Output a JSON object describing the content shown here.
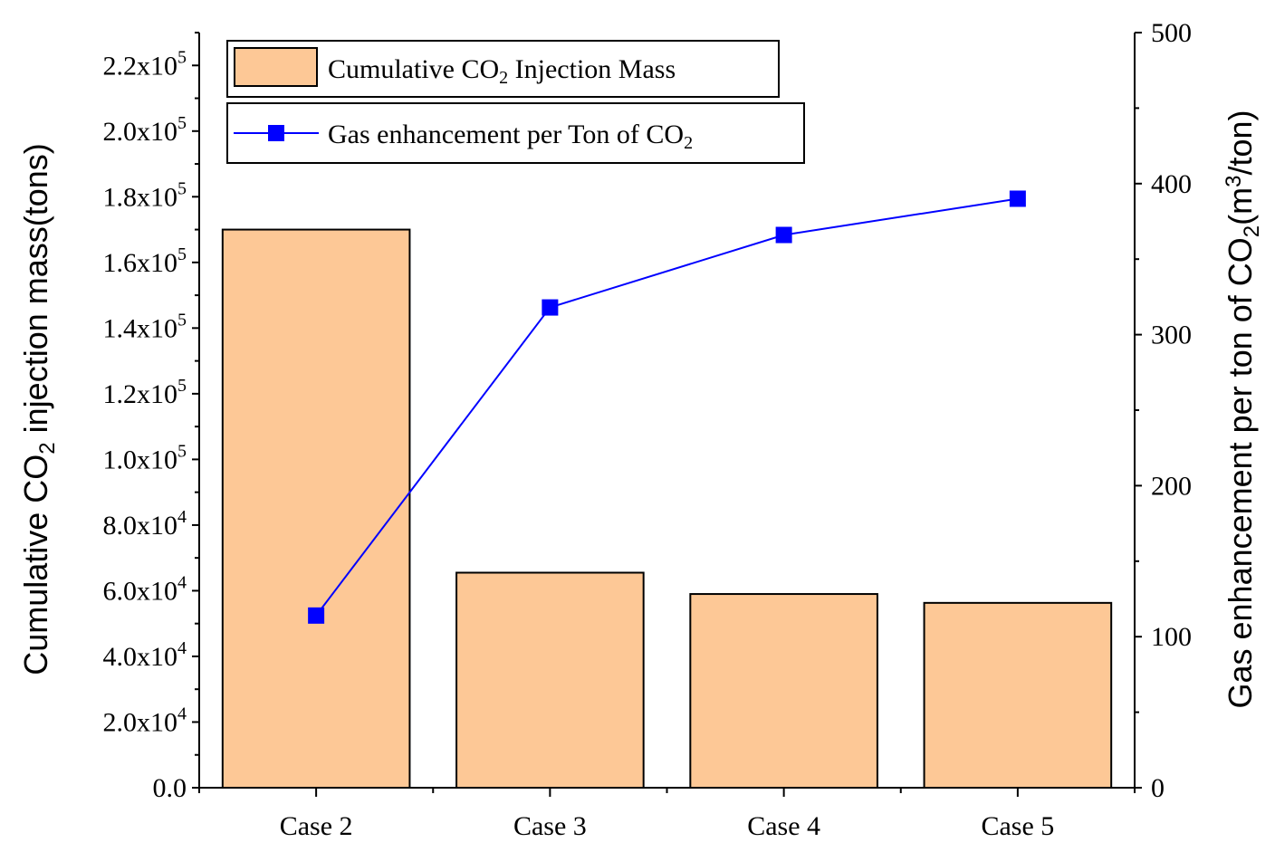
{
  "chart_data": {
    "type": "bar+line",
    "categories": [
      "Case 2",
      "Case 3",
      "Case 4",
      "Case 5"
    ],
    "series": [
      {
        "name": "Cumulative CO2 Injection Mass",
        "axis": "left",
        "type": "bar",
        "color": "#FDC896",
        "values": [
          170000,
          65500,
          59000,
          56300
        ]
      },
      {
        "name": "Gas enhancement per Ton of CO2",
        "axis": "right",
        "type": "line",
        "color": "#0000FF",
        "values": [
          114,
          318,
          366,
          390
        ]
      }
    ],
    "left_axis": {
      "label": "Cumulative CO2 injection mass(tons)",
      "ylim": [
        0,
        230000
      ],
      "ticks": [
        {
          "value": 0,
          "mant": "0.0",
          "exp": ""
        },
        {
          "value": 20000,
          "mant": "2.0x10",
          "exp": "4"
        },
        {
          "value": 40000,
          "mant": "4.0x10",
          "exp": "4"
        },
        {
          "value": 60000,
          "mant": "6.0x10",
          "exp": "4"
        },
        {
          "value": 80000,
          "mant": "8.0x10",
          "exp": "4"
        },
        {
          "value": 100000,
          "mant": "1.0x10",
          "exp": "5"
        },
        {
          "value": 120000,
          "mant": "1.2x10",
          "exp": "5"
        },
        {
          "value": 140000,
          "mant": "1.4x10",
          "exp": "5"
        },
        {
          "value": 160000,
          "mant": "1.6x10",
          "exp": "5"
        },
        {
          "value": 180000,
          "mant": "1.8x10",
          "exp": "5"
        },
        {
          "value": 200000,
          "mant": "2.0x10",
          "exp": "5"
        },
        {
          "value": 220000,
          "mant": "2.2x10",
          "exp": "5"
        }
      ]
    },
    "right_axis": {
      "label": "Gas enhancement per ton of CO2(m3/ton)",
      "ylim": [
        0,
        500
      ],
      "ticks": [
        0,
        100,
        200,
        300,
        400,
        500
      ]
    },
    "legend": {
      "position": "top-left",
      "bar_label": "Cumulative CO2 Injection Mass",
      "line_label": "Gas enhancement per Ton of CO2"
    }
  }
}
